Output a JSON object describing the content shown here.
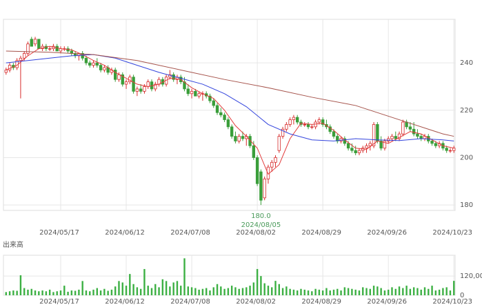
{
  "chart_data": [
    {
      "type": "candlestick",
      "categories": [
        null,
        null,
        null,
        null,
        null,
        null,
        null,
        null,
        null,
        null,
        null,
        null,
        null,
        null,
        null,
        "2024/05/17",
        null,
        null,
        null,
        null,
        null,
        null,
        null,
        null,
        null,
        null,
        null,
        null,
        null,
        null,
        null,
        null,
        null,
        "2024/06/12",
        null,
        null,
        null,
        null,
        null,
        null,
        null,
        null,
        null,
        null,
        null,
        null,
        null,
        null,
        null,
        null,
        null,
        "2024/07/08",
        null,
        null,
        null,
        null,
        null,
        null,
        null,
        null,
        null,
        null,
        null,
        null,
        null,
        null,
        null,
        null,
        null,
        "2024/08/02",
        null,
        null,
        null,
        null,
        null,
        null,
        null,
        null,
        null,
        null,
        null,
        null,
        null,
        null,
        null,
        null,
        null,
        "2024/08/29",
        null,
        null,
        null,
        null,
        null,
        null,
        null,
        null,
        null,
        null,
        null,
        null,
        null,
        null,
        null,
        null,
        null,
        "2024/09/26",
        null,
        null,
        null,
        null,
        null,
        null,
        null,
        null,
        null,
        null,
        null,
        null,
        null,
        null,
        null,
        null,
        null,
        "2024/10/23"
      ],
      "open": [
        236,
        237,
        239,
        238,
        241,
        242,
        244,
        250,
        248,
        250,
        246,
        247,
        246,
        246,
        247,
        245,
        246,
        246,
        245,
        244,
        243,
        244,
        242,
        240,
        239,
        240,
        239,
        237,
        238,
        236,
        237,
        233,
        235,
        231,
        232,
        234,
        228,
        229,
        228,
        230,
        232,
        229,
        231,
        233,
        231,
        234,
        235,
        233,
        234,
        232,
        229,
        227,
        228,
        226,
        227,
        227,
        226,
        224,
        222,
        219,
        218,
        216,
        213,
        209,
        207,
        209,
        208,
        209,
        205,
        200,
        194,
        183,
        191,
        196,
        198,
        203,
        209,
        212,
        214,
        216,
        217,
        215,
        214,
        214,
        213,
        213,
        215,
        216,
        214,
        213,
        211,
        209,
        207,
        208,
        206,
        204,
        203,
        202,
        203,
        204,
        205,
        205,
        214,
        207,
        204,
        207,
        208,
        209,
        208,
        210,
        215,
        213,
        212,
        210,
        209,
        208,
        209,
        207,
        206,
        205,
        206,
        204,
        203,
        203
      ],
      "high": [
        238,
        240,
        240,
        242,
        243,
        245,
        249,
        251,
        251,
        250,
        248,
        248,
        247,
        248,
        248,
        247,
        247,
        247,
        246,
        245,
        244,
        245,
        243,
        241,
        241,
        242,
        240,
        239,
        239,
        238,
        238,
        236,
        236,
        233,
        235,
        235,
        230,
        231,
        231,
        233,
        233,
        232,
        234,
        234,
        235,
        237,
        236,
        235,
        235,
        234,
        231,
        229,
        229,
        228,
        228,
        228,
        227,
        225,
        223,
        221,
        219,
        217,
        214,
        211,
        210,
        211,
        210,
        210,
        207,
        201,
        195,
        192,
        197,
        199,
        201,
        210,
        213,
        215,
        217,
        218,
        218,
        216,
        215,
        215,
        214,
        216,
        217,
        217,
        216,
        214,
        212,
        210,
        209,
        209,
        207,
        206,
        205,
        204,
        205,
        206,
        207,
        215,
        215,
        209,
        208,
        209,
        210,
        211,
        211,
        216,
        216,
        215,
        215,
        212,
        210,
        210,
        210,
        208,
        207,
        207,
        207,
        205,
        204,
        205
      ],
      "low": [
        235,
        236,
        237,
        237,
        225,
        241,
        243,
        247,
        247,
        246,
        245,
        245,
        245,
        245,
        245,
        244,
        245,
        244,
        243,
        242,
        241,
        241,
        239,
        238,
        238,
        238,
        236,
        236,
        235,
        235,
        232,
        232,
        230,
        229,
        231,
        227,
        226,
        227,
        227,
        229,
        228,
        228,
        230,
        230,
        230,
        233,
        232,
        231,
        231,
        228,
        226,
        225,
        226,
        225,
        224,
        225,
        223,
        221,
        218,
        217,
        215,
        212,
        208,
        206,
        206,
        207,
        205,
        204,
        199,
        188,
        180,
        182,
        189,
        194,
        196,
        202,
        208,
        211,
        213,
        214,
        214,
        213,
        213,
        212,
        212,
        212,
        214,
        213,
        212,
        210,
        208,
        206,
        206,
        205,
        203,
        202,
        201,
        201,
        202,
        202,
        203,
        204,
        206,
        203,
        203,
        206,
        207,
        207,
        207,
        209,
        212,
        211,
        209,
        208,
        207,
        207,
        206,
        205,
        204,
        204,
        203,
        202,
        202,
        202
      ],
      "close": [
        237,
        239,
        238,
        241,
        242,
        244,
        248,
        247,
        250,
        246,
        247,
        246,
        246,
        247,
        245,
        246,
        246,
        245,
        244,
        243,
        244,
        242,
        240,
        239,
        240,
        239,
        237,
        238,
        236,
        237,
        233,
        235,
        231,
        232,
        234,
        228,
        229,
        228,
        230,
        232,
        229,
        231,
        233,
        231,
        234,
        235,
        233,
        234,
        232,
        229,
        227,
        228,
        226,
        227,
        227,
        226,
        224,
        222,
        219,
        218,
        216,
        213,
        209,
        207,
        209,
        208,
        209,
        205,
        200,
        189,
        182,
        191,
        196,
        198,
        200,
        209,
        212,
        214,
        216,
        217,
        215,
        214,
        214,
        213,
        213,
        215,
        216,
        214,
        213,
        211,
        209,
        207,
        208,
        206,
        204,
        203,
        202,
        203,
        204,
        205,
        206,
        214,
        207,
        204,
        207,
        208,
        209,
        208,
        210,
        215,
        213,
        212,
        210,
        209,
        208,
        209,
        207,
        206,
        205,
        206,
        204,
        203,
        203,
        204
      ],
      "up_color": "#d62a2a",
      "down_color": "#3a9e3a",
      "series": [
        {
          "color": "#e23b3b",
          "x": [
            0,
            3,
            6,
            9,
            12,
            15,
            18,
            21,
            24,
            27,
            30,
            33,
            36,
            39,
            42,
            45,
            48,
            51,
            54,
            57,
            60,
            63,
            66,
            69,
            72,
            75,
            78,
            81,
            84,
            87,
            90,
            93,
            96,
            99,
            102,
            105,
            108,
            111,
            114,
            117,
            120,
            123
          ],
          "values": [
            237,
            239,
            243,
            246,
            247,
            246,
            245.5,
            243.5,
            241,
            239,
            236,
            233.5,
            231,
            230,
            231,
            233.5,
            233,
            229.5,
            227,
            225,
            220,
            213.5,
            209,
            204,
            193,
            197,
            208,
            214.5,
            214,
            214.5,
            211.5,
            207.5,
            204,
            203.5,
            207,
            206,
            208.5,
            211,
            210,
            207.5,
            205,
            204
          ]
        },
        {
          "color": "#3344dd",
          "x": [
            0,
            6,
            12,
            18,
            24,
            30,
            36,
            42,
            48,
            54,
            60,
            66,
            72,
            78,
            84,
            90,
            96,
            102,
            108,
            114,
            120,
            123
          ],
          "values": [
            240,
            241,
            242,
            243,
            243.5,
            242,
            239,
            236,
            233.5,
            231,
            227,
            221.5,
            214,
            210,
            207.5,
            207,
            208,
            207.5,
            207.2,
            208,
            207.5,
            207
          ]
        },
        {
          "color": "#a5524a",
          "x": [
            0,
            12,
            24,
            36,
            48,
            60,
            72,
            84,
            96,
            108,
            120,
            123
          ],
          "values": [
            245,
            244.5,
            243.5,
            241,
            237,
            233,
            229.5,
            225.5,
            222,
            216,
            210,
            209
          ]
        }
      ],
      "ylim": [
        177.7,
        258.4
      ],
      "yticks": [
        180,
        200,
        220,
        240
      ],
      "grid": true,
      "annotation": {
        "value": {
          "value": 180,
          "label": "180.0"
        },
        "date": "2024/08/05",
        "color": "#4a9a5a"
      }
    },
    {
      "type": "bar",
      "label": "出来高",
      "categories": [
        null,
        null,
        null,
        null,
        null,
        null,
        null,
        null,
        null,
        null,
        null,
        null,
        null,
        null,
        null,
        "2024/05/17",
        null,
        null,
        null,
        null,
        null,
        null,
        null,
        null,
        null,
        null,
        null,
        null,
        null,
        null,
        null,
        null,
        null,
        "2024/06/12",
        null,
        null,
        null,
        null,
        null,
        null,
        null,
        null,
        null,
        null,
        null,
        null,
        null,
        null,
        null,
        null,
        null,
        "2024/07/08",
        null,
        null,
        null,
        null,
        null,
        null,
        null,
        null,
        null,
        null,
        null,
        null,
        null,
        null,
        null,
        null,
        null,
        "2024/08/02",
        null,
        null,
        null,
        null,
        null,
        null,
        null,
        null,
        null,
        null,
        null,
        null,
        null,
        null,
        null,
        null,
        null,
        "2024/08/29",
        null,
        null,
        null,
        null,
        null,
        null,
        null,
        null,
        null,
        null,
        null,
        null,
        null,
        null,
        null,
        null,
        null,
        "2024/09/26",
        null,
        null,
        null,
        null,
        null,
        null,
        null,
        null,
        null,
        null,
        null,
        null,
        null,
        null,
        null,
        null,
        null,
        "2024/10/23"
      ],
      "values": [
        20000,
        25000,
        30000,
        28000,
        125000,
        45000,
        35000,
        40000,
        30000,
        25000,
        30000,
        25000,
        35000,
        20000,
        25000,
        30000,
        60000,
        22000,
        30000,
        28000,
        35000,
        89000,
        30000,
        25000,
        35000,
        45000,
        30000,
        40000,
        28000,
        35000,
        55000,
        89000,
        80000,
        60000,
        133000,
        70000,
        50000,
        40000,
        164000,
        60000,
        45000,
        70000,
        50000,
        100000,
        89000,
        55000,
        80000,
        89000,
        60000,
        231000,
        55000,
        50000,
        45000,
        35000,
        40000,
        45000,
        30000,
        50000,
        70000,
        55000,
        40000,
        45000,
        60000,
        50000,
        40000,
        45000,
        50000,
        60000,
        80000,
        164000,
        120000,
        75000,
        60000,
        50000,
        90000,
        70000,
        45000,
        55000,
        40000,
        35000,
        30000,
        40000,
        35000,
        30000,
        25000,
        40000,
        35000,
        30000,
        45000,
        30000,
        35000,
        40000,
        30000,
        50000,
        45000,
        40000,
        35000,
        30000,
        50000,
        45000,
        40000,
        60000,
        55000,
        45000,
        30000,
        35000,
        50000,
        40000,
        55000,
        45000,
        60000,
        40000,
        50000,
        45000,
        35000,
        50000,
        40000,
        60000,
        30000,
        35000,
        45000,
        50000,
        30000,
        90000
      ],
      "color": "#3cb043",
      "ylim": [
        0,
        250000
      ],
      "yticks": [
        0,
        {
          "value": 120000,
          "label": "120,000"
        }
      ],
      "grid": true
    }
  ]
}
